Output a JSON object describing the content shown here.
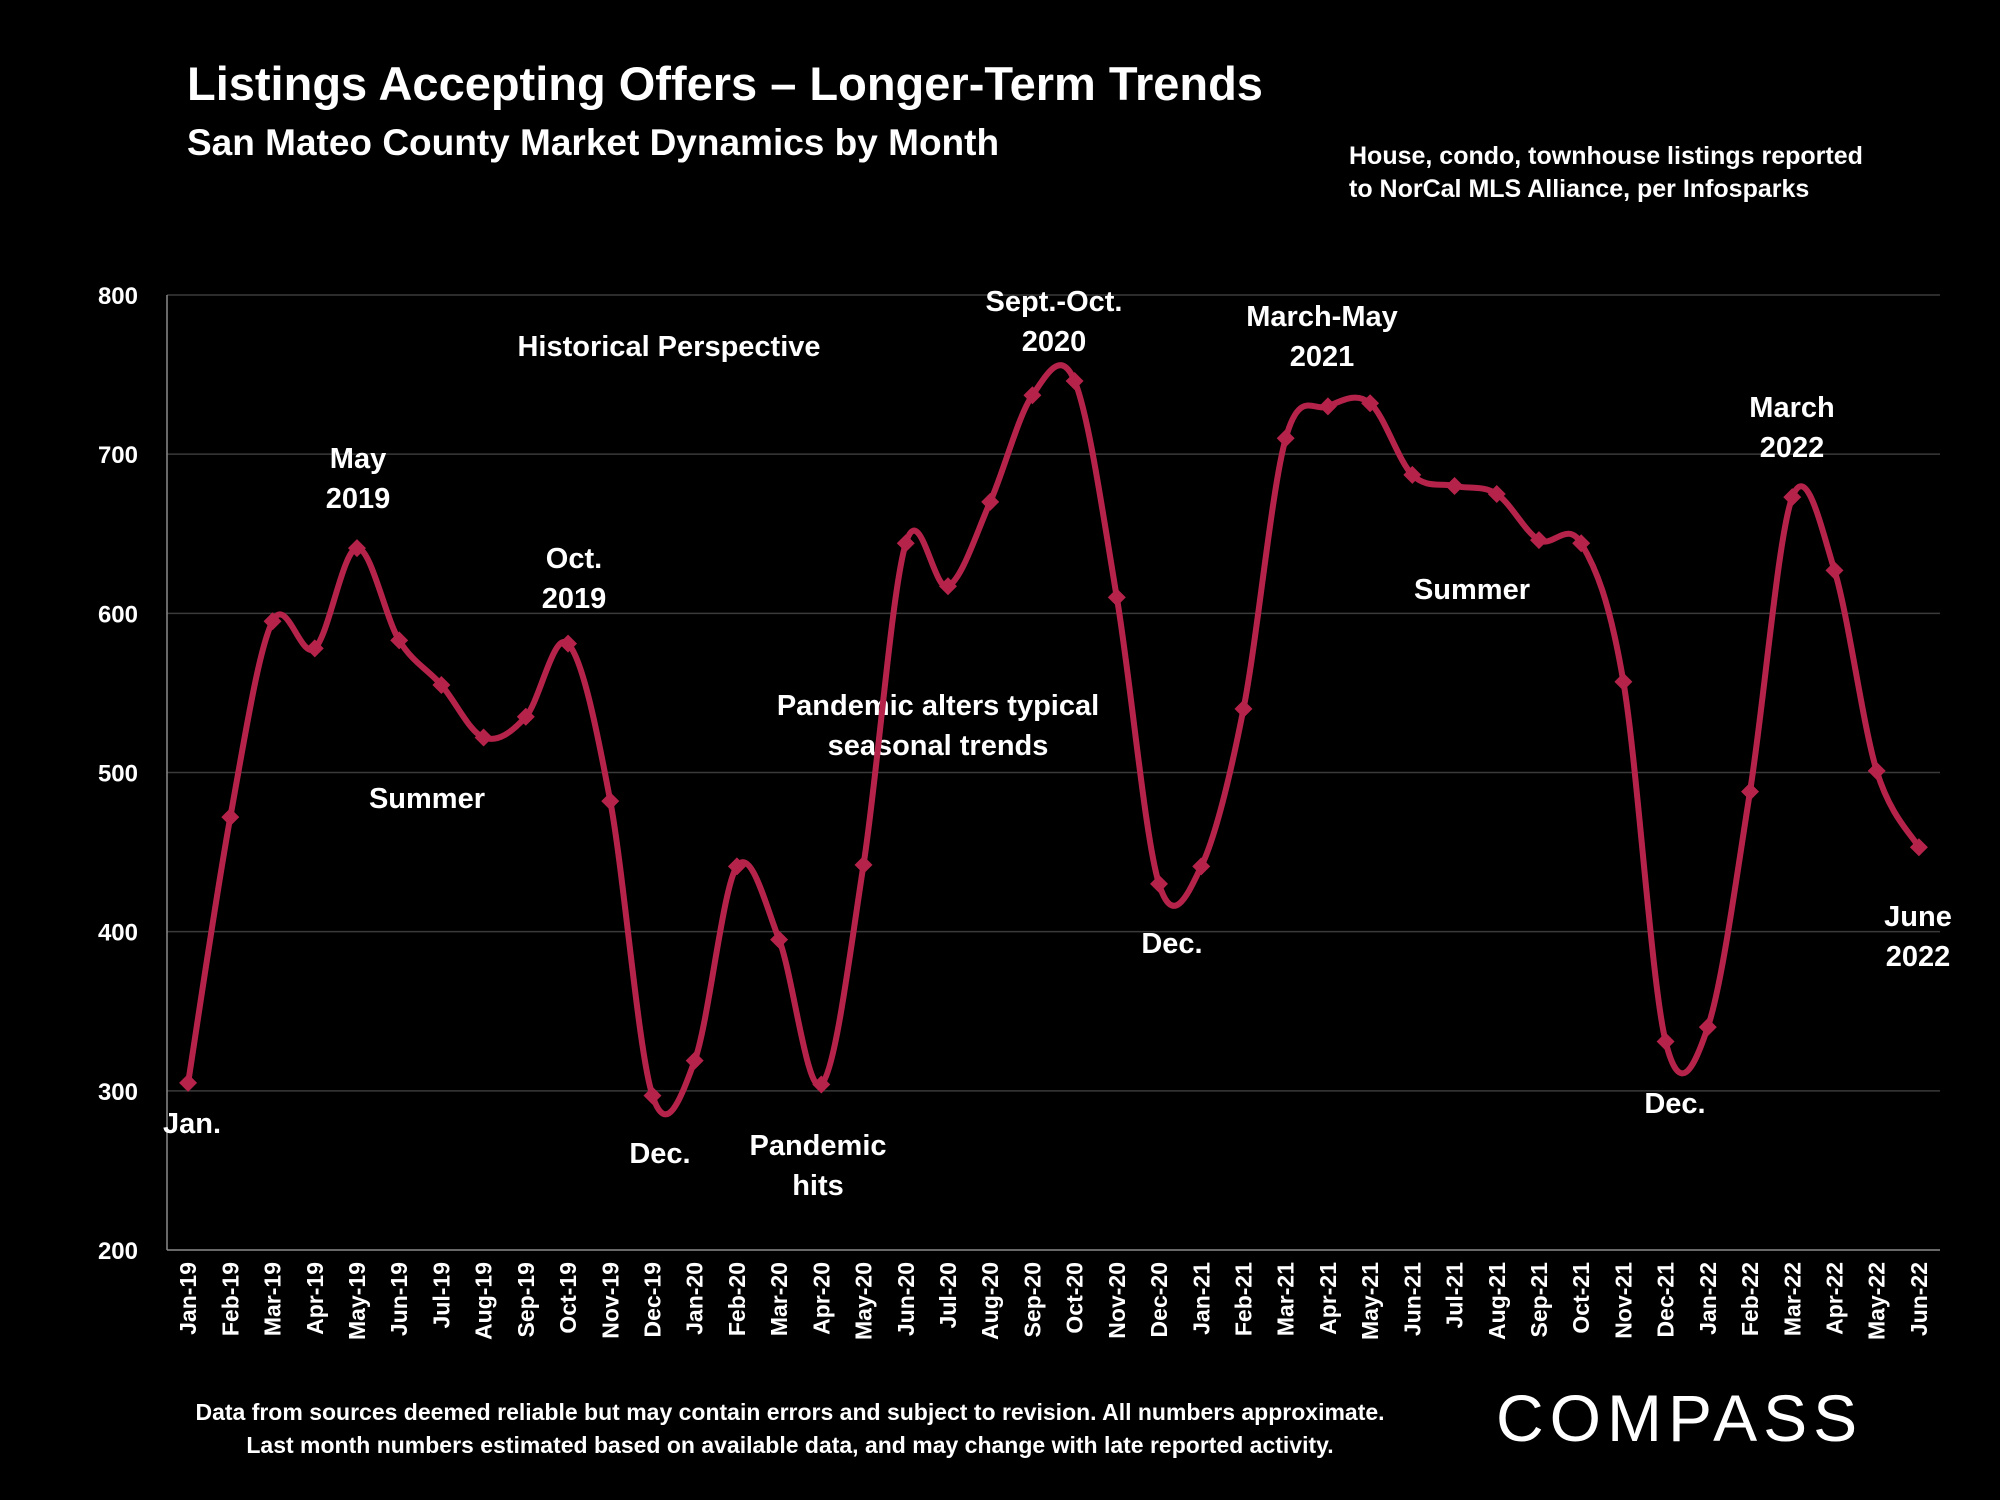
{
  "title": "Listings Accepting Offers – Longer-Term Trends",
  "subtitle": "San Mateo County Market Dynamics by Month",
  "source_line1": "House, condo, townhouse listings reported",
  "source_line2": "to NorCal MLS Alliance, per Infosparks",
  "disclaimer_line1": "Data from sources deemed reliable but may contain errors and subject to revision. All numbers approximate.",
  "disclaimer_line2": "Last month numbers estimated based on available data, and may change with late reported activity.",
  "logo": "COMPASS",
  "colors": {
    "line": "#B5234A",
    "background": "#000000",
    "pandemic_text": "#D0142C",
    "grid": "#3a3a3a"
  },
  "chart_data": {
    "type": "line",
    "categories": [
      "Jan-19",
      "Feb-19",
      "Mar-19",
      "Apr-19",
      "May-19",
      "Jun-19",
      "Jul-19",
      "Aug-19",
      "Sep-19",
      "Oct-19",
      "Nov-19",
      "Dec-19",
      "Jan-20",
      "Feb-20",
      "Mar-20",
      "Apr-20",
      "May-20",
      "Jun-20",
      "Jul-20",
      "Aug-20",
      "Sep-20",
      "Oct-20",
      "Nov-20",
      "Dec-20",
      "Jan-21",
      "Feb-21",
      "Mar-21",
      "Apr-21",
      "May-21",
      "Jun-21",
      "Jul-21",
      "Aug-21",
      "Sep-21",
      "Oct-21",
      "Nov-21",
      "Dec-21",
      "Jan-22",
      "Feb-22",
      "Mar-22",
      "Apr-22",
      "May-22",
      "Jun-22"
    ],
    "values": [
      305,
      472,
      595,
      578,
      641,
      583,
      555,
      522,
      535,
      581,
      482,
      297,
      319,
      441,
      395,
      304,
      442,
      644,
      617,
      670,
      737,
      746,
      610,
      430,
      441,
      540,
      710,
      730,
      732,
      687,
      680,
      675,
      646,
      644,
      557,
      331,
      340,
      488,
      673,
      627,
      501,
      453
    ],
    "ylim": [
      200,
      800
    ],
    "yticks": [
      200,
      300,
      400,
      500,
      600,
      700,
      800
    ],
    "grid": true,
    "annotations": [
      {
        "text": "Historical Perspective"
      },
      {
        "text": "May"
      },
      {
        "text": "2019"
      },
      {
        "text": "Oct."
      },
      {
        "text": "2019"
      },
      {
        "text": "Summer"
      },
      {
        "text": "Jan."
      },
      {
        "text": "Dec."
      },
      {
        "text": "Pandemic"
      },
      {
        "text": "hits"
      },
      {
        "text": "Pandemic alters typical"
      },
      {
        "text": "seasonal trends"
      },
      {
        "text": "Sept.-Oct."
      },
      {
        "text": "2020"
      },
      {
        "text": "Dec."
      },
      {
        "text": "March-May"
      },
      {
        "text": "2021"
      },
      {
        "text": "Summer"
      },
      {
        "text": "Dec."
      },
      {
        "text": "March"
      },
      {
        "text": "2022"
      },
      {
        "text": "June"
      },
      {
        "text": "2022"
      }
    ]
  }
}
